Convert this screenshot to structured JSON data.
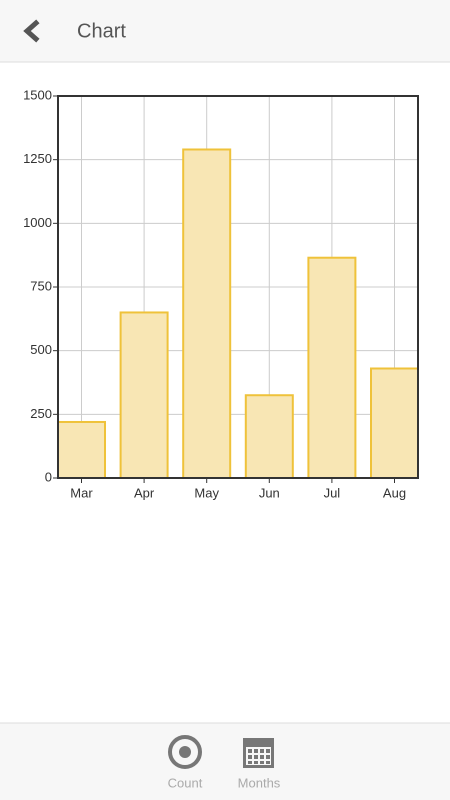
{
  "header": {
    "title": "Chart"
  },
  "chart_data": {
    "type": "bar",
    "categories": [
      "Mar",
      "Apr",
      "May",
      "Jun",
      "Jul",
      "Aug"
    ],
    "values": [
      220,
      650,
      1290,
      325,
      865,
      430
    ],
    "color": "#f8e6b4",
    "border_color": "#efc23a",
    "ylim": [
      0,
      1500
    ],
    "yticks": [
      0,
      250,
      500,
      750,
      1000,
      1250,
      1500
    ],
    "grid": true
  },
  "tabs": [
    {
      "label": "Count"
    },
    {
      "label": "Months"
    }
  ]
}
